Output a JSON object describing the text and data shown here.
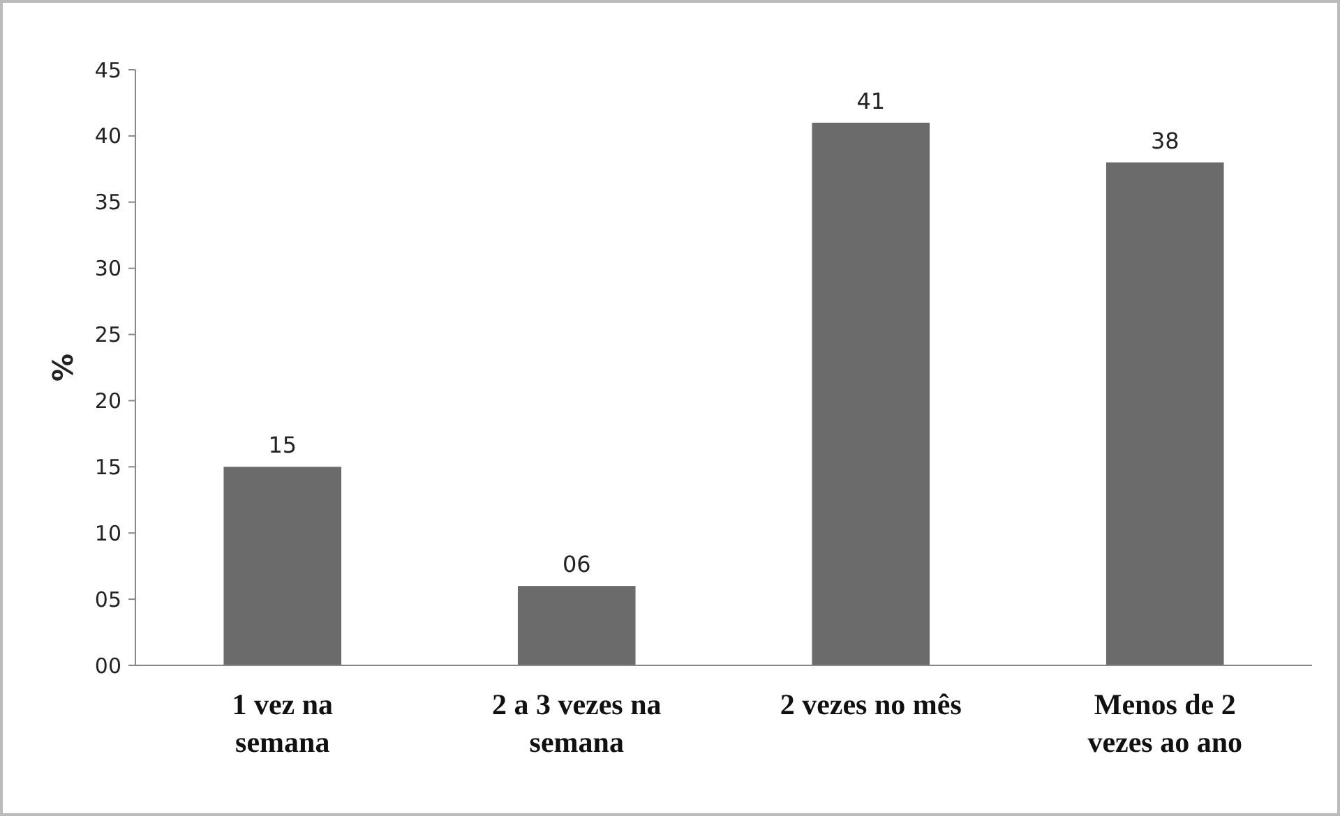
{
  "chart_data": {
    "type": "bar",
    "ylabel": "%",
    "categories": [
      "1 vez na semana",
      "2 a 3 vezes na semana",
      "2 vezes no mês",
      "Menos de 2 vezes ao ano"
    ],
    "values": [
      15,
      6,
      41,
      38
    ],
    "value_labels": [
      "15",
      "06",
      "41",
      "38"
    ],
    "color": "#6b6b6b",
    "ylim": [
      0,
      45
    ],
    "yticks": [
      {
        "value": 0,
        "label": "00"
      },
      {
        "value": 5,
        "label": "05"
      },
      10,
      15,
      20,
      25,
      30,
      35,
      40,
      45
    ],
    "grid": false
  }
}
